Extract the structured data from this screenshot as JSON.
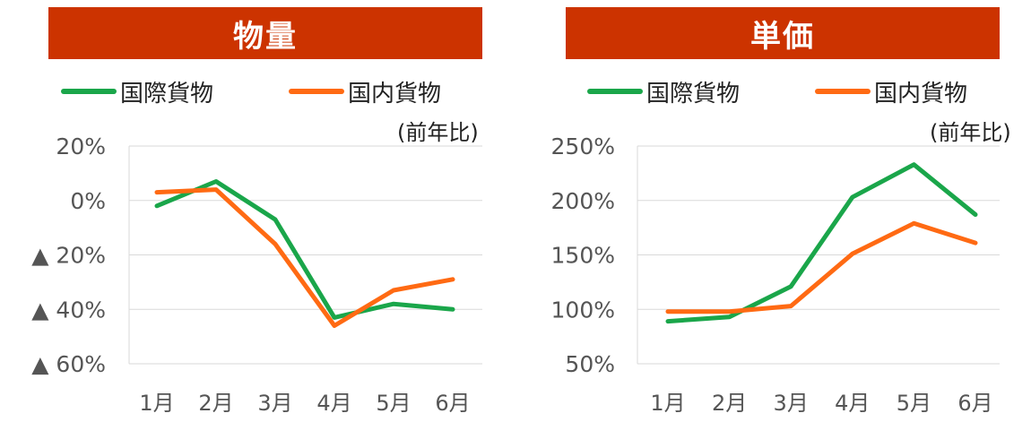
{
  "colors": {
    "banner": "#cc3300",
    "international": "#1aa64a",
    "domestic": "#ff6a13"
  },
  "panels": [
    {
      "title": "物量",
      "legend": [
        "国際貨物",
        "国内貨物"
      ],
      "note": "(前年比)"
    },
    {
      "title": "単価",
      "legend": [
        "国際貨物",
        "国内貨物"
      ],
      "note": "(前年比)"
    }
  ],
  "chart_data": [
    {
      "type": "line",
      "title": "物量",
      "categories": [
        "1月",
        "2月",
        "3月",
        "4月",
        "5月",
        "6月"
      ],
      "series": [
        {
          "name": "国際貨物",
          "values": [
            -2,
            7,
            -7,
            -43,
            -38,
            -40
          ]
        },
        {
          "name": "国内貨物",
          "values": [
            3,
            4,
            -16,
            -46,
            -33,
            -29
          ]
        }
      ],
      "yticks": [
        20,
        0,
        -20,
        -40,
        -60
      ],
      "ytick_labels": [
        "20%",
        "0%",
        "▲ 20%",
        "▲ 40%",
        "▲ 60%"
      ],
      "ylim": [
        -60,
        20
      ],
      "grid": true,
      "legend_position": "top"
    },
    {
      "type": "line",
      "title": "単価",
      "categories": [
        "1月",
        "2月",
        "3月",
        "4月",
        "5月",
        "6月"
      ],
      "series": [
        {
          "name": "国際貨物",
          "values": [
            89,
            93,
            121,
            203,
            233,
            187
          ]
        },
        {
          "name": "国内貨物",
          "values": [
            98,
            98,
            103,
            151,
            179,
            161
          ]
        }
      ],
      "yticks": [
        250,
        200,
        150,
        100,
        50
      ],
      "ytick_labels": [
        "250%",
        "200%",
        "150%",
        "100%",
        "50%"
      ],
      "ylim": [
        50,
        250
      ],
      "grid": true,
      "legend_position": "top"
    }
  ]
}
